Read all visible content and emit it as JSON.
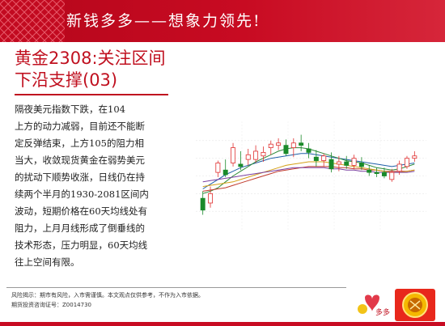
{
  "banner": {
    "title": "新钱多多——想象力领先!"
  },
  "headline": {
    "line1": "黄金2308:关注区间",
    "line2": "下沿支撑(03)"
  },
  "body": {
    "lines": [
      "隔夜美元指数下跌，在104",
      "上方的动力减弱，目前还不能断",
      "定反弹结束，上方105的阻力相",
      "当大，收敛现货黄金在弱势美元",
      "的扰动下顺势收涨，日线仍在持",
      "续两个半月的1930-2081区间内",
      "波动，短期价格在60天均线处有",
      "阻力，上月月线形成了倒垂线的",
      "技术形态，压力明显，60天均线",
      "往上空间有限。"
    ]
  },
  "chart_data": {
    "type": "candlestick",
    "title": "",
    "xlabel": "",
    "ylabel": "",
    "grid": true,
    "candles": [
      {
        "o": 66,
        "h": 72,
        "l": 52,
        "c": 56
      },
      {
        "o": 62,
        "h": 76,
        "l": 58,
        "c": 70
      },
      {
        "o": 88,
        "h": 98,
        "l": 84,
        "c": 96
      },
      {
        "o": 90,
        "h": 99,
        "l": 84,
        "c": 86
      },
      {
        "o": 96,
        "h": 113,
        "l": 93,
        "c": 109
      },
      {
        "o": 95,
        "h": 106,
        "l": 90,
        "c": 93
      },
      {
        "o": 99,
        "h": 108,
        "l": 94,
        "c": 103
      },
      {
        "o": 99,
        "h": 111,
        "l": 96,
        "c": 106
      },
      {
        "o": 102,
        "h": 110,
        "l": 97,
        "c": 105
      },
      {
        "o": 109,
        "h": 115,
        "l": 103,
        "c": 112
      },
      {
        "o": 111,
        "h": 117,
        "l": 107,
        "c": 113
      },
      {
        "o": 111,
        "h": 116,
        "l": 102,
        "c": 104
      },
      {
        "o": 109,
        "h": 117,
        "l": 101,
        "c": 113
      },
      {
        "o": 113,
        "h": 120,
        "l": 106,
        "c": 111
      },
      {
        "o": 108,
        "h": 113,
        "l": 100,
        "c": 105
      },
      {
        "o": 101,
        "h": 107,
        "l": 93,
        "c": 98
      },
      {
        "o": 98,
        "h": 104,
        "l": 93,
        "c": 102
      },
      {
        "o": 99,
        "h": 105,
        "l": 88,
        "c": 91
      },
      {
        "o": 95,
        "h": 102,
        "l": 89,
        "c": 97
      },
      {
        "o": 97,
        "h": 102,
        "l": 91,
        "c": 94
      },
      {
        "o": 94,
        "h": 103,
        "l": 91,
        "c": 100
      },
      {
        "o": 96,
        "h": 101,
        "l": 90,
        "c": 93
      },
      {
        "o": 90,
        "h": 94,
        "l": 85,
        "c": 88
      },
      {
        "o": 88,
        "h": 92,
        "l": 84,
        "c": 87
      },
      {
        "o": 88,
        "h": 92,
        "l": 83,
        "c": 85
      },
      {
        "o": 82,
        "h": 91,
        "l": 80,
        "c": 88
      },
      {
        "o": 89,
        "h": 98,
        "l": 86,
        "c": 95
      },
      {
        "o": 93,
        "h": 102,
        "l": 91,
        "c": 100
      },
      {
        "o": 100,
        "h": 106,
        "l": 97,
        "c": 102
      }
    ],
    "ma": [
      {
        "color": "#1f5fa8",
        "values": [
          74,
          78,
          82,
          86,
          89,
          92,
          94,
          96,
          98,
          100,
          101,
          102,
          103,
          104,
          104,
          103,
          102,
          101,
          100,
          99,
          98,
          97,
          96,
          95,
          94,
          93,
          94,
          95,
          96
        ]
      },
      {
        "color": "#2e8b3a",
        "values": [
          70,
          72,
          75,
          80,
          85,
          89,
          93,
          97,
          100,
          103,
          106,
          108,
          109,
          109,
          108,
          106,
          104,
          102,
          100,
          98,
          97,
          96,
          94,
          92,
          91,
          90,
          91,
          93,
          95
        ]
      },
      {
        "color": "#c0392b",
        "values": [
          72,
          73,
          74,
          75,
          77,
          79,
          81,
          83,
          85,
          87,
          89,
          90,
          91,
          92,
          93,
          93,
          93,
          93,
          92,
          92,
          91,
          91,
          90,
          90,
          89,
          89,
          89,
          89,
          90
        ]
      },
      {
        "color": "#d4a017",
        "values": [
          76,
          77,
          78,
          79,
          80,
          82,
          84,
          86,
          88,
          90,
          92,
          94,
          95,
          96,
          97,
          97,
          97,
          96,
          95,
          94,
          93,
          92,
          91,
          90,
          89,
          88,
          88,
          89,
          90
        ]
      },
      {
        "color": "#7a3fa0",
        "values": [
          80,
          81,
          82,
          83,
          84,
          85,
          86,
          87,
          88,
          89,
          90,
          91,
          92,
          92,
          92,
          92,
          92,
          91,
          91,
          90,
          90,
          89,
          89,
          88,
          88,
          88,
          88,
          88,
          89
        ]
      }
    ],
    "ylim": [
      40,
      130
    ]
  },
  "footer": {
    "risk": "风险揭示：期市有风险，入市需谨慎。本文观点仅供参考，不作为入市依据。",
    "license": "期货投资咨询证号：Z0014730"
  },
  "logos": {
    "brand_text": "多多"
  },
  "colors": {
    "brand_red": "#c80b22",
    "up": "#e03030",
    "down": "#1a8a2a"
  }
}
